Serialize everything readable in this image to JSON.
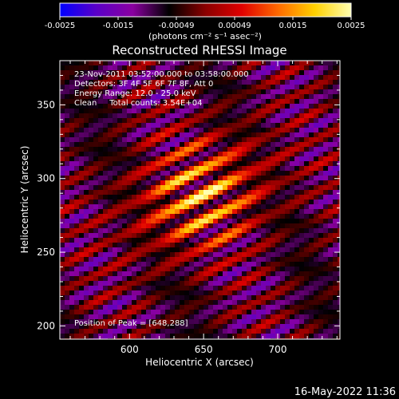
{
  "colorbar": {
    "ticks": [
      "-0.0025",
      "-0.0015",
      "-0.00049",
      "0.00049",
      "0.0015",
      "0.0025"
    ],
    "units": "(photons cm⁻² s⁻¹ asec⁻²)",
    "min": -0.0025,
    "max": 0.0025,
    "colormap": [
      "#0000ff",
      "#5a00c8",
      "#8a00a0",
      "#000000",
      "#8a0000",
      "#e00000",
      "#ff6a00",
      "#ffd000",
      "#ffffb0"
    ]
  },
  "chart_data": {
    "type": "heatmap",
    "title": "Reconstructed RHESSI Image",
    "xlabel": "Heliocentric X (arcsec)",
    "ylabel": "Heliocentric Y (arcsec)",
    "xlim": [
      553,
      742
    ],
    "ylim": [
      191,
      380
    ],
    "x_ticks": [
      600,
      650,
      700
    ],
    "y_ticks": [
      200,
      250,
      300,
      350
    ],
    "peak": {
      "x": 648,
      "y": 288
    },
    "info_lines": [
      "23-Nov-2011 03:52:00.000 to 03:58:00.000",
      "Detectors: 3F 4F 5F 6F 7F 8F, Att 0",
      "Energy Range: 12.0 - 25.0 keV",
      "Clean     Total counts: 3.54E+04"
    ],
    "peak_label": "Position of Peak = [648,288]"
  },
  "footer": {
    "date": "16-May-2022 11:36"
  }
}
